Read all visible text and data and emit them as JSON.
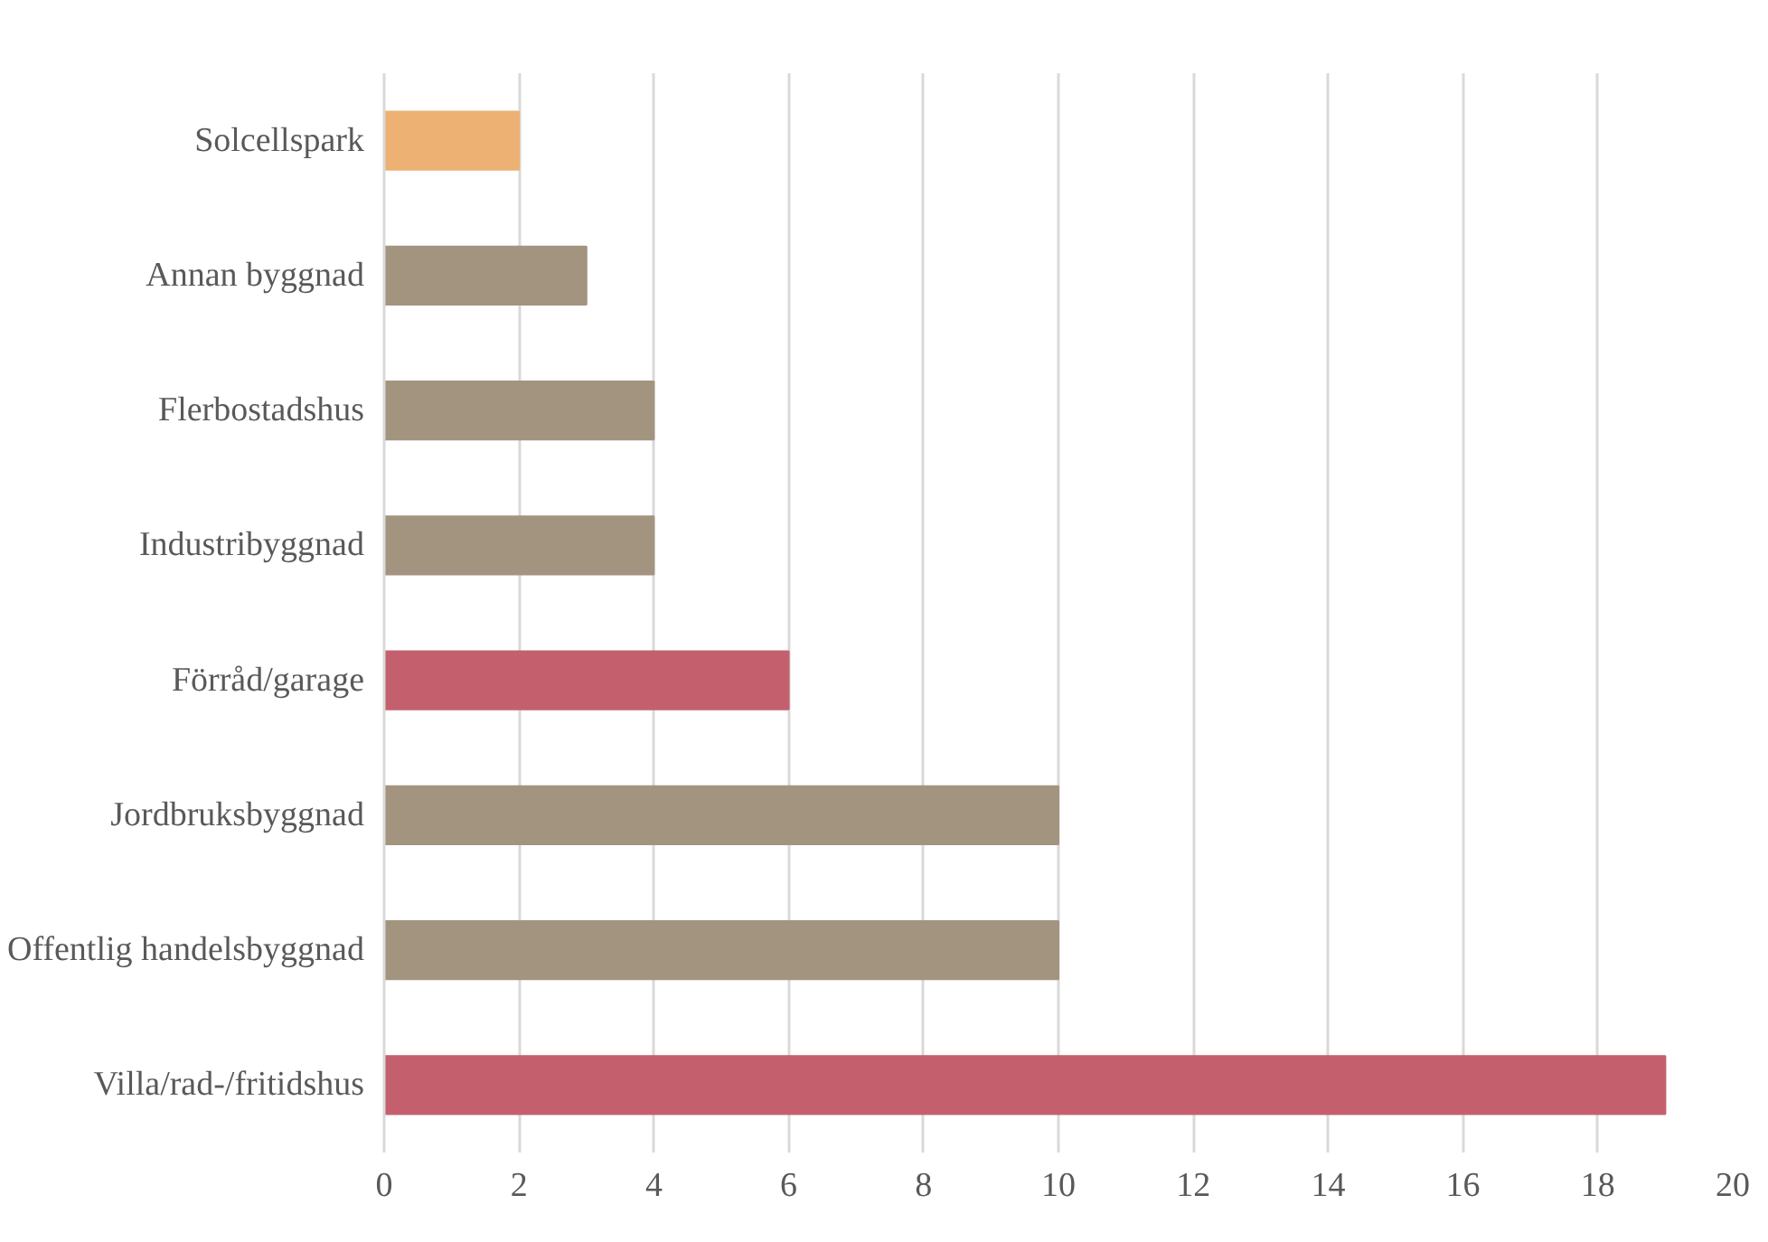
{
  "chart_data": {
    "type": "bar",
    "orientation": "horizontal",
    "categories": [
      "Solcellspark",
      "Annan byggnad",
      "Flerbostadshus",
      "Industribyggnad",
      "Förråd/garage",
      "Jordbruksbyggnad",
      "Offentlig handelsbyggnad",
      "Villa/rad-/fritidshus"
    ],
    "values": [
      2,
      3,
      4,
      4,
      6,
      10,
      10,
      19
    ],
    "colors": [
      "#ecb173",
      "#a39480",
      "#a39480",
      "#a39480",
      "#c4606e",
      "#a39480",
      "#a39480",
      "#c4606e"
    ],
    "xlim": [
      0,
      20
    ],
    "xticks": [
      0,
      2,
      4,
      6,
      8,
      10,
      12,
      14,
      16,
      18,
      20
    ],
    "grid": "x"
  }
}
